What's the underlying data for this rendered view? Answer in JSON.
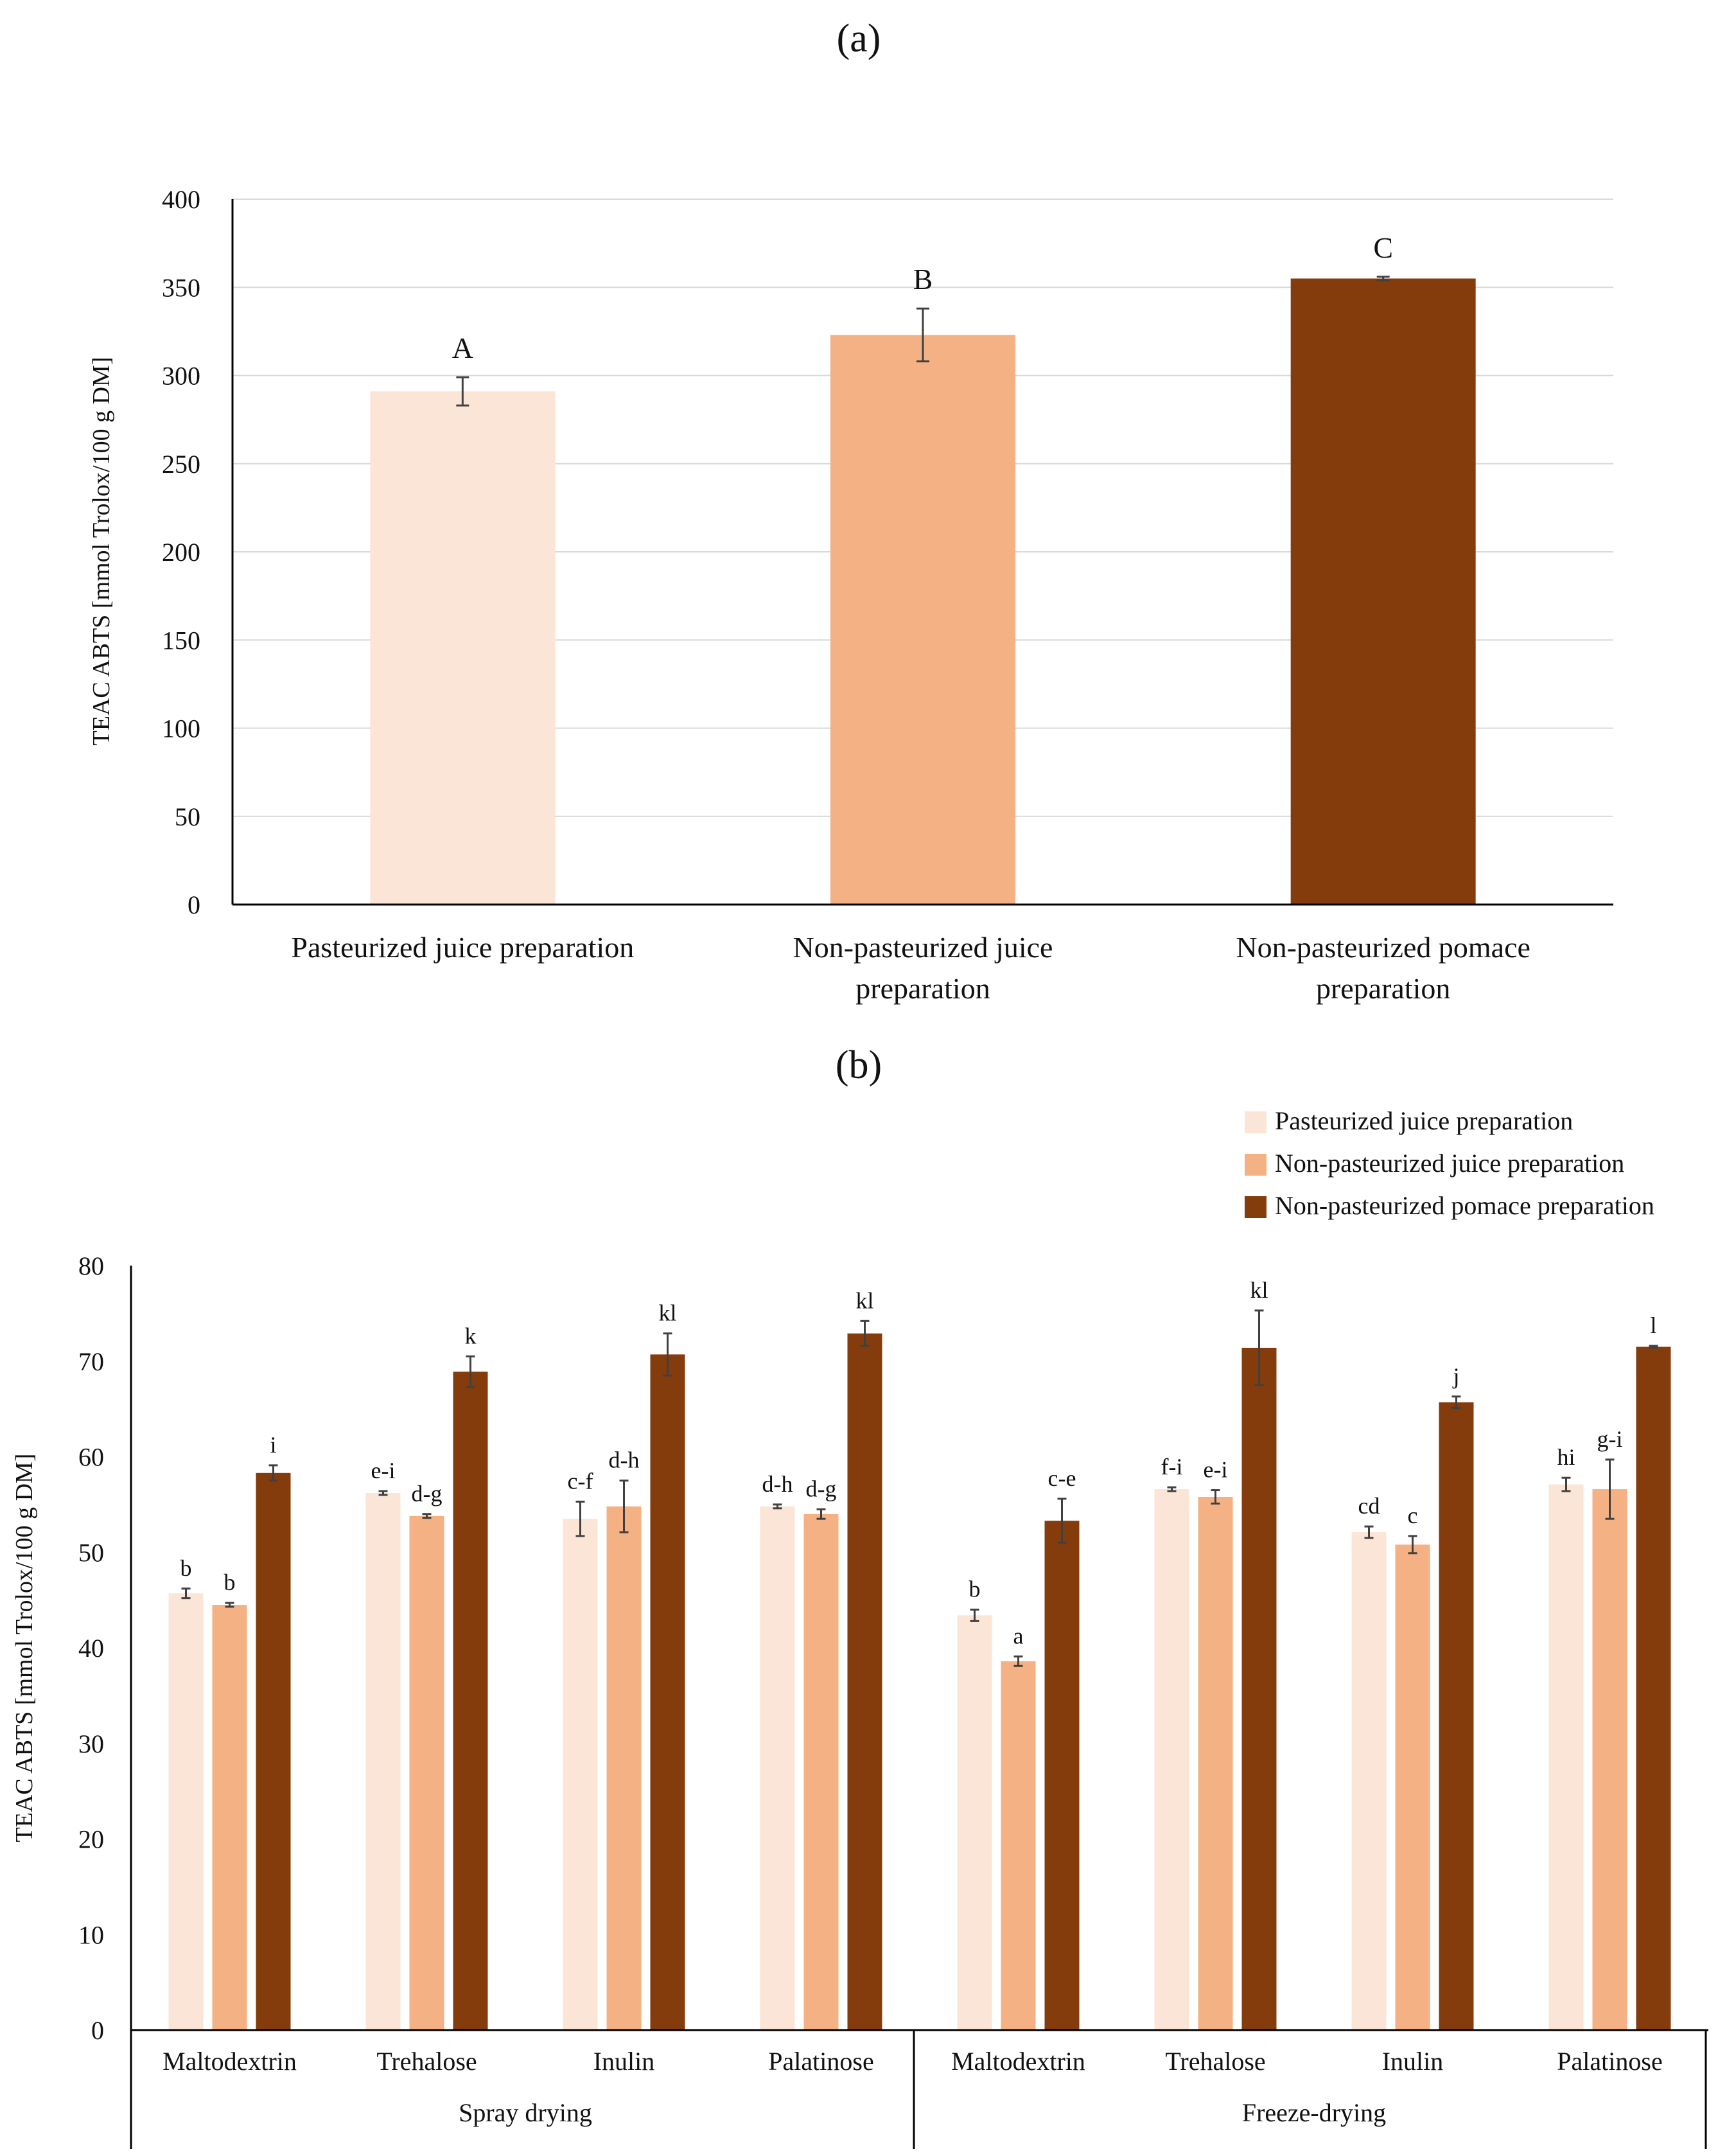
{
  "panel_a_label": "(a)",
  "panel_b_label": "(b)",
  "chart_data": [
    {
      "type": "bar",
      "panel": "a",
      "ylabel": "TEAC ABTS [mmol Trolox/100 g DM]",
      "ylim": [
        0,
        400
      ],
      "yticks": [
        0,
        50,
        100,
        150,
        200,
        250,
        300,
        350,
        400
      ],
      "grid": true,
      "categories": [
        [
          "Pasteurized juice preparation"
        ],
        [
          "Non-pasteurized juice",
          "preparation"
        ],
        [
          "Non-pasteurized pomace",
          "preparation"
        ]
      ],
      "values": [
        291,
        323,
        355
      ],
      "errors": [
        8,
        15,
        1
      ],
      "letters": [
        "A",
        "B",
        "C"
      ],
      "colors": [
        "#fbe5d6",
        "#f4b183",
        "#843c0c"
      ]
    },
    {
      "type": "bar",
      "panel": "b",
      "ylabel": "TEAC ABTS [mmol Trolox/100 g DM]",
      "ylim": [
        0,
        80
      ],
      "yticks": [
        0,
        10,
        20,
        30,
        40,
        50,
        60,
        70,
        80
      ],
      "grid": false,
      "legend_position": "top-right",
      "groups": [
        {
          "name": "Spray drying",
          "categories": [
            "Maltodextrin",
            "Trehalose",
            "Inulin",
            "Palatinose"
          ]
        },
        {
          "name": "Freeze-drying",
          "categories": [
            "Maltodextrin",
            "Trehalose",
            "Inulin",
            "Palatinose"
          ]
        }
      ],
      "series": [
        {
          "name": "Pasteurized juice preparation",
          "color": "#fbe5d6",
          "values": [
            45.7,
            56.2,
            53.5,
            54.8,
            43.4,
            56.6,
            52.1,
            57.1
          ],
          "errors": [
            0.5,
            0.2,
            1.8,
            0.2,
            0.6,
            0.2,
            0.6,
            0.7
          ],
          "letters": [
            "b",
            "e-i",
            "c-f",
            "d-h",
            "b",
            "f-i",
            "cd",
            "hi"
          ]
        },
        {
          "name": "Non-pasteurized juice preparation",
          "color": "#f4b183",
          "values": [
            44.5,
            53.8,
            54.8,
            54.0,
            38.6,
            55.8,
            50.8,
            56.6
          ],
          "errors": [
            0.2,
            0.2,
            2.7,
            0.5,
            0.5,
            0.7,
            0.9,
            3.1
          ],
          "letters": [
            "b",
            "d-g",
            "d-h",
            "d-g",
            "a",
            "e-i",
            "c",
            "g-i"
          ]
        },
        {
          "name": "Non-pasteurized pomace preparation",
          "color": "#843c0c",
          "values": [
            58.3,
            68.9,
            70.7,
            72.9,
            53.3,
            71.4,
            65.7,
            71.5
          ],
          "errors": [
            0.8,
            1.6,
            2.2,
            1.3,
            2.3,
            3.9,
            0.6,
            0.1
          ],
          "letters": [
            "i",
            "k",
            "kl",
            "kl",
            "c-e",
            "kl",
            "j",
            "l"
          ]
        }
      ]
    }
  ]
}
